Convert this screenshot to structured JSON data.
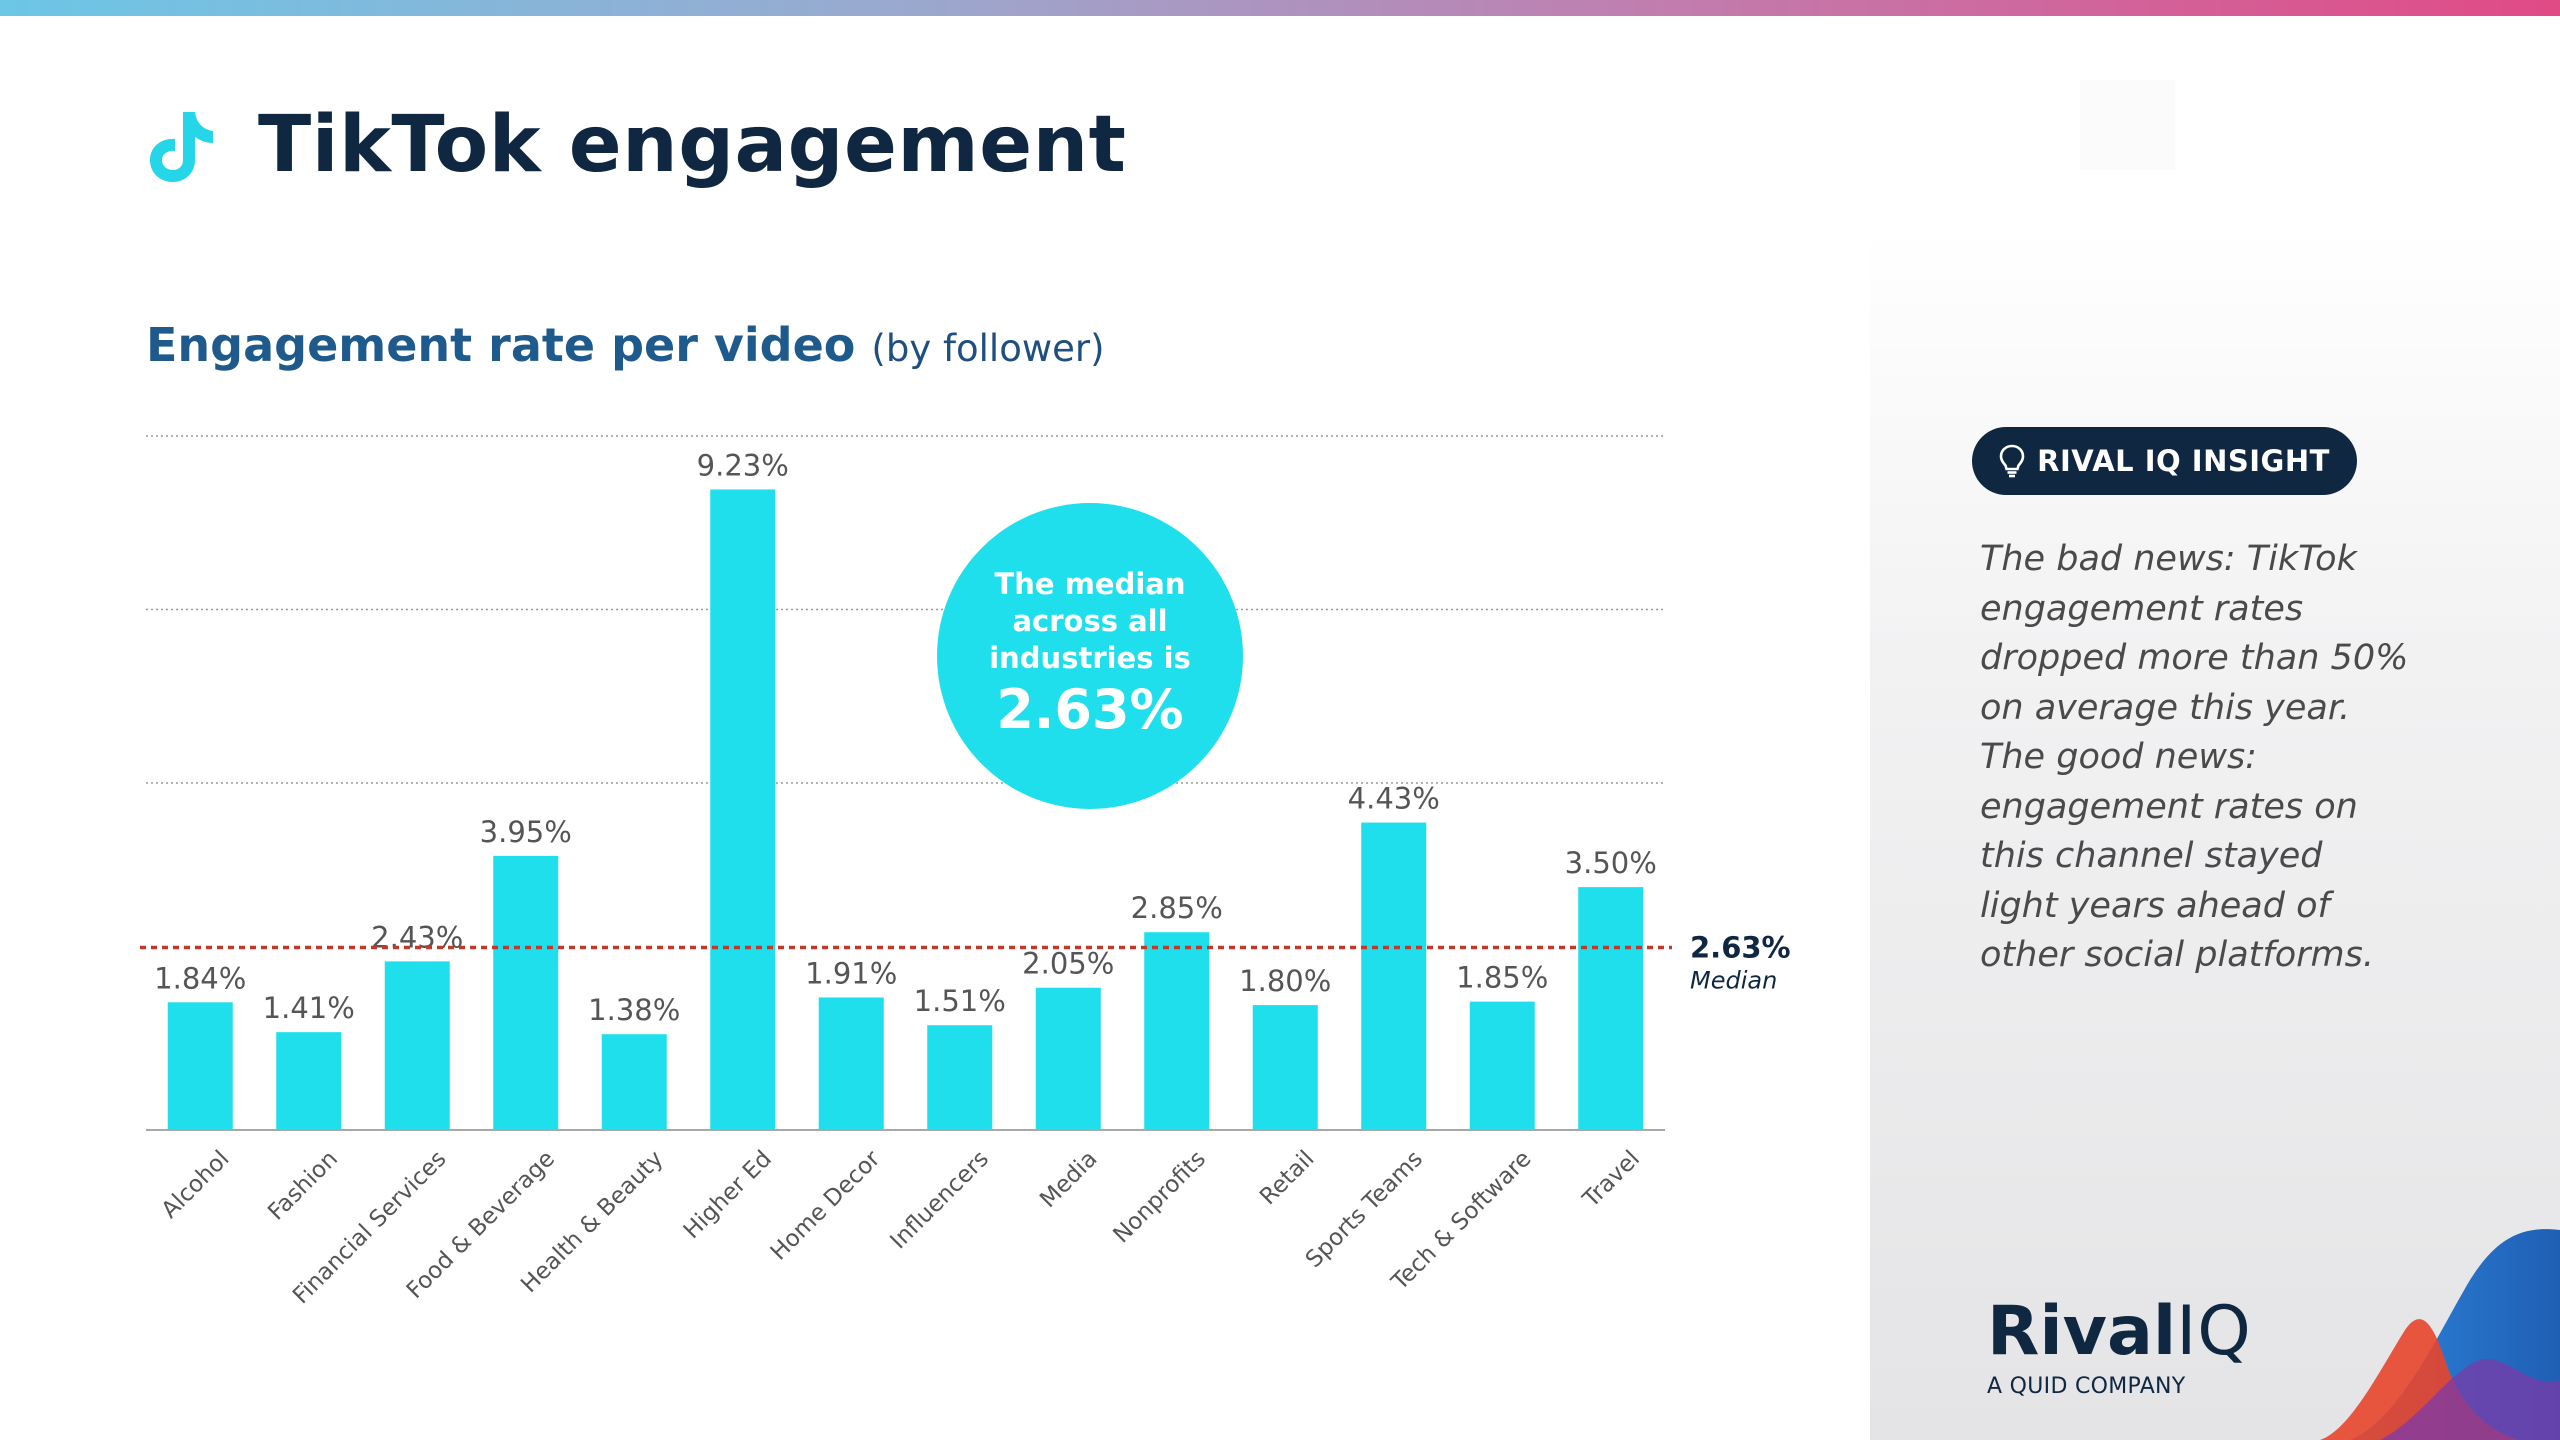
{
  "header": {
    "title": "TikTok engagement",
    "icon": "tiktok-icon"
  },
  "chart_title": {
    "main": "Engagement rate per video",
    "sub": "(by follower)"
  },
  "chart_data": {
    "type": "bar",
    "title": "Engagement rate per video (by follower)",
    "categories": [
      "Alcohol",
      "Fashion",
      "Financial Services",
      "Food & Beverage",
      "Health & Beauty",
      "Higher Ed",
      "Home Decor",
      "Influencers",
      "Media",
      "Nonprofits",
      "Retail",
      "Sports Teams",
      "Tech & Software",
      "Travel"
    ],
    "values": [
      1.84,
      1.41,
      2.43,
      3.95,
      1.38,
      9.23,
      1.91,
      1.51,
      2.05,
      2.85,
      1.8,
      4.43,
      1.85,
      3.5
    ],
    "value_labels": [
      "1.84%",
      "1.41%",
      "2.43%",
      "3.95%",
      "1.38%",
      "9.23%",
      "1.91%",
      "1.51%",
      "2.05%",
      "2.85%",
      "1.80%",
      "4.43%",
      "1.85%",
      "3.50%"
    ],
    "ylim": [
      0,
      10
    ],
    "grid": true,
    "bar_color": "#20dfec",
    "reference_line": {
      "value": 2.63,
      "label_value": "2.63%",
      "label_text": "Median",
      "color": "#c0392b"
    }
  },
  "callout": {
    "text_line1": "The median",
    "text_line2": "across all",
    "text_line3": "industries is",
    "value": "2.63%",
    "color": "#20dfec"
  },
  "insight": {
    "badge_label": "RIVAL IQ INSIGHT",
    "badge_icon": "lightbulb-icon",
    "text": "The bad news: TikTok engagement rates dropped more than 50% on average this year. The good news: engagement rates on this channel stayed light years ahead of other social platforms."
  },
  "logo": {
    "name_part1": "Rival",
    "name_part2": "IQ",
    "tagline": "A QUID COMPANY"
  },
  "colors": {
    "navy": "#0f2740",
    "accent_cyan": "#20dfec",
    "median_red": "#c0392b"
  }
}
